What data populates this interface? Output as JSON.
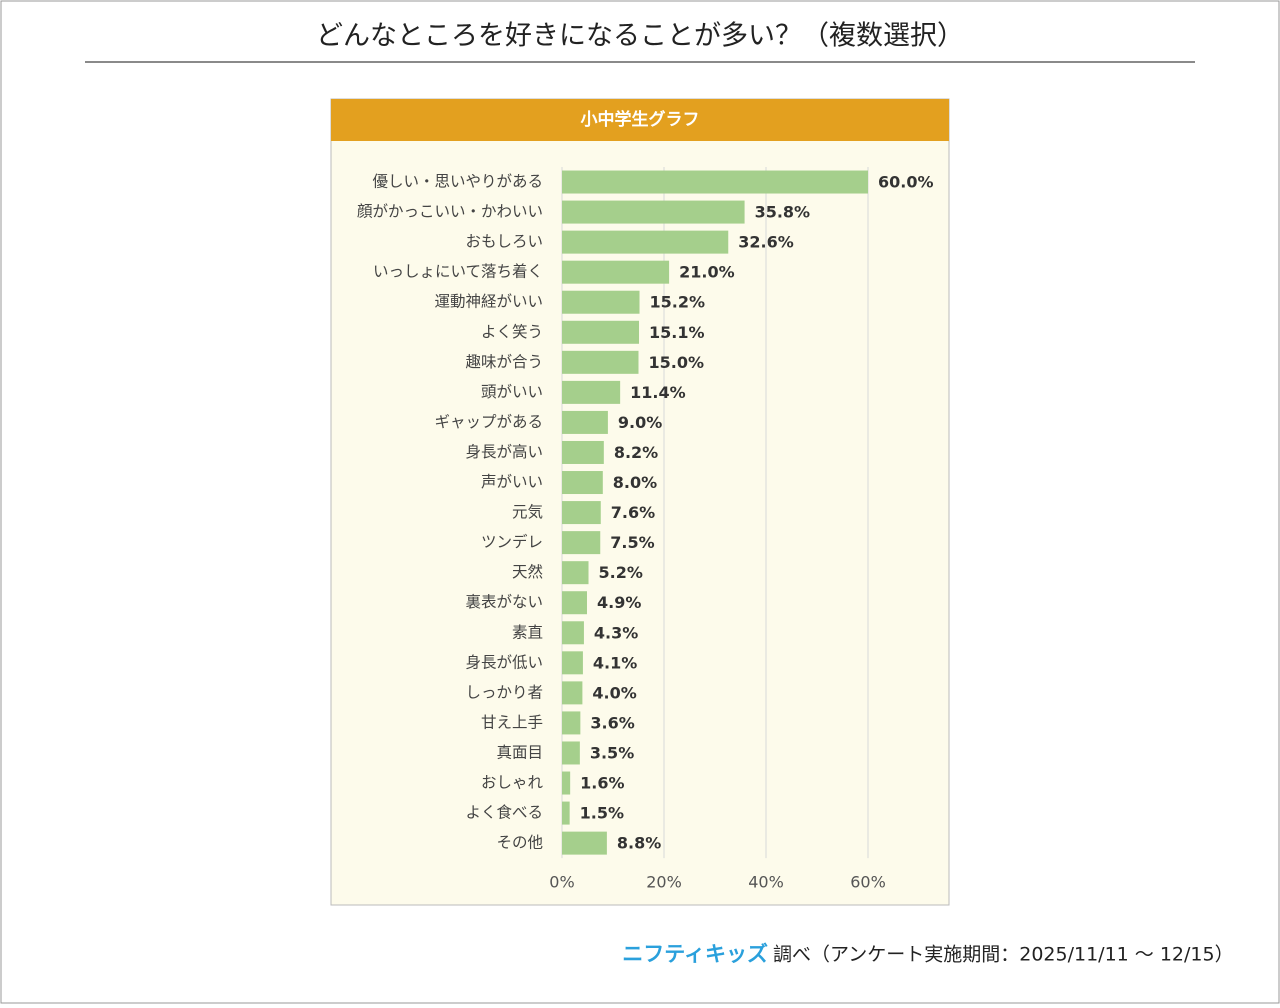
{
  "page": {
    "title": "どんなところを好きになることが多い？（複数選択）"
  },
  "chart_data": {
    "type": "bar",
    "orientation": "horizontal",
    "title": "小中学生グラフ",
    "categories": [
      "優しい・思いやりがある",
      "顔がかっこいい・かわいい",
      "おもしろい",
      "いっしょにいて落ち着く",
      "運動神経がいい",
      "よく笑う",
      "趣味が合う",
      "頭がいい",
      "ギャップがある",
      "身長が高い",
      "声がいい",
      "元気",
      "ツンデレ",
      "天然",
      "裏表がない",
      "素直",
      "身長が低い",
      "しっかり者",
      "甘え上手",
      "真面目",
      "おしゃれ",
      "よく食べる",
      "その他"
    ],
    "values": [
      60.0,
      35.8,
      32.6,
      21.0,
      15.2,
      15.1,
      15.0,
      11.4,
      9.0,
      8.2,
      8.0,
      7.6,
      7.5,
      5.2,
      4.9,
      4.3,
      4.1,
      4.0,
      3.6,
      3.5,
      1.6,
      1.5,
      8.8
    ],
    "value_labels": [
      "60.0%",
      "35.8%",
      "32.6%",
      "21.0%",
      "15.2%",
      "15.1%",
      "15.0%",
      "11.4%",
      "9.0%",
      "8.2%",
      "8.0%",
      "7.6%",
      "7.5%",
      "5.2%",
      "4.9%",
      "4.3%",
      "4.1%",
      "4.0%",
      "3.6%",
      "3.5%",
      "1.6%",
      "1.5%",
      "8.8%"
    ],
    "color": "#a5cf8c",
    "xlim": [
      0,
      60
    ],
    "xticks": [
      {
        "value": 0,
        "label": "0%"
      },
      {
        "value": 20,
        "label": "20%"
      },
      {
        "value": 40,
        "label": "40%"
      },
      {
        "value": 60,
        "label": "60%"
      }
    ],
    "grid": true
  },
  "footer": {
    "logo": "ニフティキッズ",
    "text": "調べ（アンケート実施期間：2025/11/11 ～ 12/15）"
  }
}
